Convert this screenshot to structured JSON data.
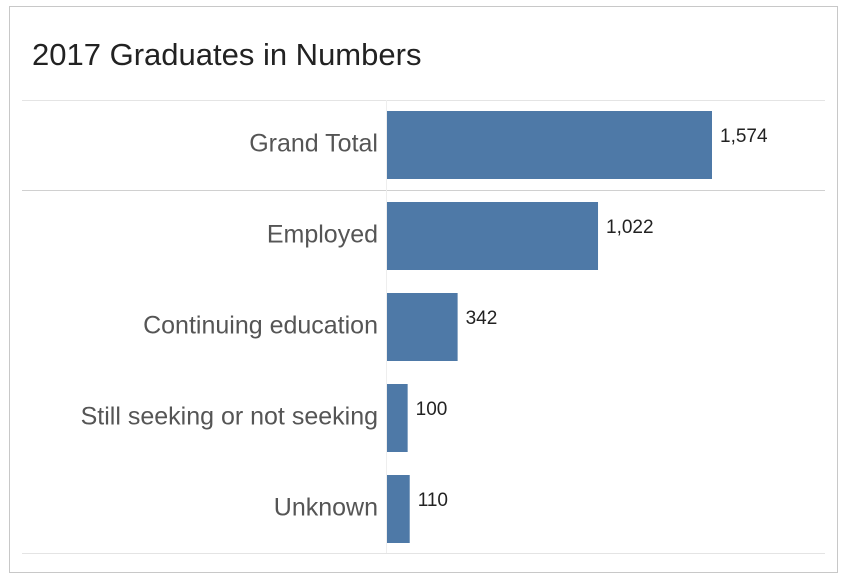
{
  "chart_data": {
    "type": "bar",
    "orientation": "horizontal",
    "title": "2017 Graduates in Numbers",
    "categories": [
      "Grand Total",
      "Employed",
      "Continuing education",
      "Still seeking or not seeking",
      "Unknown"
    ],
    "values": [
      1574,
      1022,
      342,
      100,
      110
    ],
    "value_labels": [
      "1,574",
      "1,022",
      "342",
      "100",
      "110"
    ],
    "color": "#4e79a7"
  }
}
